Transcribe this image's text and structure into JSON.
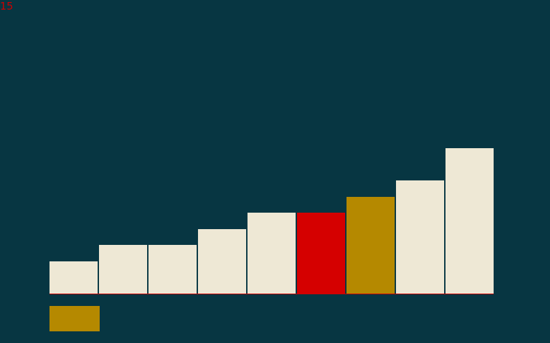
{
  "counter": {
    "value": "15",
    "color": "#cc0000"
  },
  "colors": {
    "background": "#073642",
    "default_bar": "#eee8d5",
    "baseline": "#cc0000",
    "swatch": "#b58900"
  },
  "chart_data": {
    "type": "bar",
    "values": [
      2,
      3,
      3,
      4,
      5,
      5,
      6,
      7,
      9
    ],
    "bar_colors": [
      "#eee8d5",
      "#eee8d5",
      "#eee8d5",
      "#eee8d5",
      "#eee8d5",
      "#d50000",
      "#b58900",
      "#eee8d5",
      "#eee8d5"
    ],
    "ylim": [
      0,
      18
    ]
  }
}
